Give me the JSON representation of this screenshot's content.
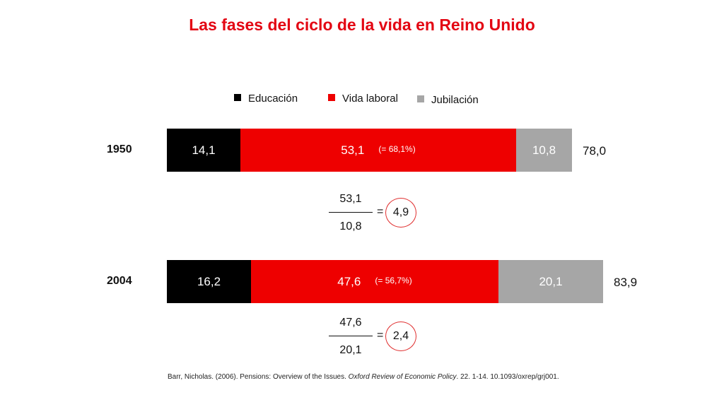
{
  "title": "Las fases del ciclo de la vida en Reino Unido",
  "legend": [
    {
      "label": "Educación",
      "color": "#000000"
    },
    {
      "label": "Vida laboral",
      "color": "#ee0000"
    },
    {
      "label": "Jubilación",
      "color": "#a6a6a6"
    }
  ],
  "chart_data": {
    "type": "bar",
    "orientation": "horizontal",
    "stacked": true,
    "title": "Las fases del ciclo de la vida en Reino Unido",
    "categories": [
      "1950",
      "2004"
    ],
    "series": [
      {
        "name": "Educación",
        "color": "#000000",
        "values": [
          14.1,
          16.2
        ],
        "labels": [
          "14,1",
          "16,2"
        ]
      },
      {
        "name": "Vida laboral",
        "color": "#ee0000",
        "values": [
          53.1,
          47.6
        ],
        "labels": [
          "53,1",
          "47,6"
        ],
        "annotations": [
          "(= 68,1%)",
          "(= 56,7%)"
        ]
      },
      {
        "name": "Jubilación",
        "color": "#a6a6a6",
        "values": [
          10.8,
          20.1
        ],
        "labels": [
          "10,8",
          "20,1"
        ]
      }
    ],
    "totals": [
      78.0,
      83.9
    ],
    "total_labels": [
      "78,0",
      "83,9"
    ],
    "ratios": [
      {
        "numerator": "53,1",
        "denominator": "10,8",
        "result": "4,9"
      },
      {
        "numerator": "47,6",
        "denominator": "20,1",
        "result": "2,4"
      }
    ],
    "legend_position": "top",
    "grid": false
  },
  "equals_sign": "=",
  "source": {
    "part1": "Barr, Nicholas. (2006). Pensions: Overview  of the Issues. ",
    "journal": "Oxford Review  of Economic Policy",
    "part2": ". 22. 1-14. 10.1093/oxrep/grj001."
  }
}
